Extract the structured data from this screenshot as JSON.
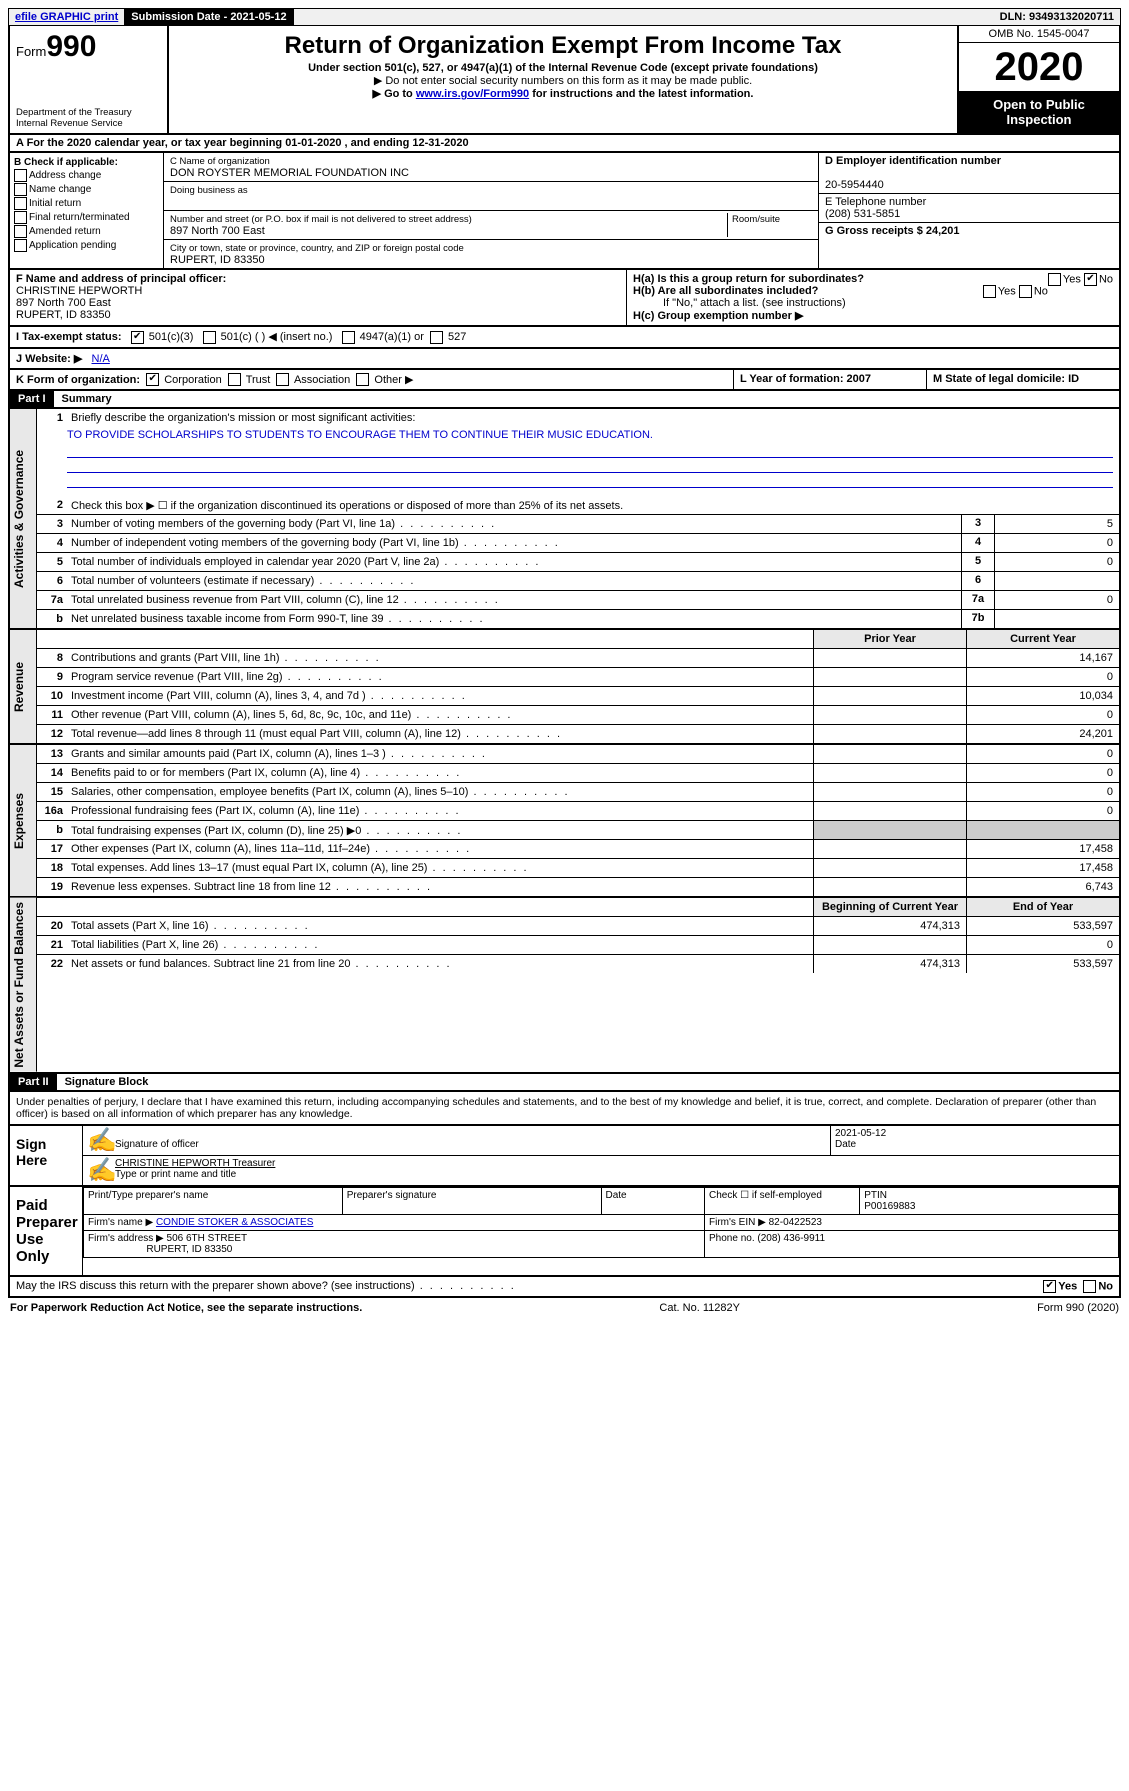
{
  "topbar": {
    "efile": "efile GRAPHIC print",
    "submission_label": "Submission Date - 2021-05-12",
    "dln": "DLN: 93493132020711"
  },
  "header": {
    "form_prefix": "Form",
    "form_number": "990",
    "dept1": "Department of the Treasury",
    "dept2": "Internal Revenue Service",
    "title": "Return of Organization Exempt From Income Tax",
    "subtitle": "Under section 501(c), 527, or 4947(a)(1) of the Internal Revenue Code (except private foundations)",
    "note1": "▶ Do not enter social security numbers on this form as it may be made public.",
    "note2_pre": "▶ Go to ",
    "note2_link": "www.irs.gov/Form990",
    "note2_post": " for instructions and the latest information.",
    "omb": "OMB No. 1545-0047",
    "year": "2020",
    "open": "Open to Public Inspection"
  },
  "line_a": "A For the 2020 calendar year, or tax year beginning 01-01-2020   , and ending 12-31-2020",
  "section_b": {
    "title": "B Check if applicable:",
    "opts": [
      "Address change",
      "Name change",
      "Initial return",
      "Final return/terminated",
      "Amended return",
      "Application pending"
    ]
  },
  "section_c": {
    "name_label": "C Name of organization",
    "org_name": "DON ROYSTER MEMORIAL FOUNDATION INC",
    "dba_label": "Doing business as",
    "addr_label": "Number and street (or P.O. box if mail is not delivered to street address)",
    "room_label": "Room/suite",
    "street": "897 North 700 East",
    "city_label": "City or town, state or province, country, and ZIP or foreign postal code",
    "city": "RUPERT, ID  83350"
  },
  "section_d": {
    "ein_label": "D Employer identification number",
    "ein": "20-5954440",
    "phone_label": "E Telephone number",
    "phone": "(208) 531-5851",
    "gross_label": "G Gross receipts $ 24,201"
  },
  "section_f": {
    "label": "F  Name and address of principal officer:",
    "name": "CHRISTINE HEPWORTH",
    "line2": "897 North 700 East",
    "line3": "RUPERT, ID  83350"
  },
  "section_h": {
    "ha": "H(a)  Is this a group return for subordinates?",
    "hb": "H(b)  Are all subordinates included?",
    "hb_note": "If \"No,\" attach a list. (see instructions)",
    "hc": "H(c)  Group exemption number ▶",
    "yes": "Yes",
    "no": "No"
  },
  "section_i": {
    "label": "I    Tax-exempt status:",
    "c3": "501(c)(3)",
    "c": "501(c) (  ) ◀ (insert no.)",
    "a1": "4947(a)(1) or",
    "s527": "527"
  },
  "section_j": {
    "label": "J    Website: ▶",
    "val": "N/A"
  },
  "section_k": {
    "label": "K Form of organization:",
    "corp": "Corporation",
    "trust": "Trust",
    "assoc": "Association",
    "other": "Other ▶"
  },
  "section_l": {
    "label": "L Year of formation: 2007"
  },
  "section_m": {
    "label": "M State of legal domicile: ID"
  },
  "part1": {
    "header": "Part I",
    "title": "Summary",
    "tab_gov": "Activities & Governance",
    "tab_rev": "Revenue",
    "tab_exp": "Expenses",
    "tab_net": "Net Assets or Fund Balances",
    "line1_label": "Briefly describe the organization's mission or most significant activities:",
    "line1_val": "TO PROVIDE SCHOLARSHIPS TO STUDENTS TO ENCOURAGE THEM TO CONTINUE THEIR MUSIC EDUCATION.",
    "line2": "Check this box ▶ ☐  if the organization discontinued its operations or disposed of more than 25% of its net assets.",
    "lines_gov": [
      {
        "n": "3",
        "d": "Number of voting members of the governing body (Part VI, line 1a)",
        "c": "3",
        "v": "5"
      },
      {
        "n": "4",
        "d": "Number of independent voting members of the governing body (Part VI, line 1b)",
        "c": "4",
        "v": "0"
      },
      {
        "n": "5",
        "d": "Total number of individuals employed in calendar year 2020 (Part V, line 2a)",
        "c": "5",
        "v": "0"
      },
      {
        "n": "6",
        "d": "Total number of volunteers (estimate if necessary)",
        "c": "6",
        "v": ""
      },
      {
        "n": "7a",
        "d": "Total unrelated business revenue from Part VIII, column (C), line 12",
        "c": "7a",
        "v": "0"
      },
      {
        "n": "b",
        "d": "Net unrelated business taxable income from Form 990-T, line 39",
        "c": "7b",
        "v": ""
      }
    ],
    "col_prior": "Prior Year",
    "col_current": "Current Year",
    "lines_rev": [
      {
        "n": "8",
        "d": "Contributions and grants (Part VIII, line 1h)",
        "p": "",
        "c": "14,167"
      },
      {
        "n": "9",
        "d": "Program service revenue (Part VIII, line 2g)",
        "p": "",
        "c": "0"
      },
      {
        "n": "10",
        "d": "Investment income (Part VIII, column (A), lines 3, 4, and 7d )",
        "p": "",
        "c": "10,034"
      },
      {
        "n": "11",
        "d": "Other revenue (Part VIII, column (A), lines 5, 6d, 8c, 9c, 10c, and 11e)",
        "p": "",
        "c": "0"
      },
      {
        "n": "12",
        "d": "Total revenue—add lines 8 through 11 (must equal Part VIII, column (A), line 12)",
        "p": "",
        "c": "24,201"
      }
    ],
    "lines_exp": [
      {
        "n": "13",
        "d": "Grants and similar amounts paid (Part IX, column (A), lines 1–3 )",
        "p": "",
        "c": "0"
      },
      {
        "n": "14",
        "d": "Benefits paid to or for members (Part IX, column (A), line 4)",
        "p": "",
        "c": "0"
      },
      {
        "n": "15",
        "d": "Salaries, other compensation, employee benefits (Part IX, column (A), lines 5–10)",
        "p": "",
        "c": "0"
      },
      {
        "n": "16a",
        "d": "Professional fundraising fees (Part IX, column (A), line 11e)",
        "p": "",
        "c": "0"
      },
      {
        "n": "b",
        "d": "Total fundraising expenses (Part IX, column (D), line 25) ▶0",
        "p": "gray",
        "c": "gray"
      },
      {
        "n": "17",
        "d": "Other expenses (Part IX, column (A), lines 11a–11d, 11f–24e)",
        "p": "",
        "c": "17,458"
      },
      {
        "n": "18",
        "d": "Total expenses. Add lines 13–17 (must equal Part IX, column (A), line 25)",
        "p": "",
        "c": "17,458"
      },
      {
        "n": "19",
        "d": "Revenue less expenses. Subtract line 18 from line 12",
        "p": "",
        "c": "6,743"
      }
    ],
    "col_begin": "Beginning of Current Year",
    "col_end": "End of Year",
    "lines_net": [
      {
        "n": "20",
        "d": "Total assets (Part X, line 16)",
        "p": "474,313",
        "c": "533,597"
      },
      {
        "n": "21",
        "d": "Total liabilities (Part X, line 26)",
        "p": "",
        "c": "0"
      },
      {
        "n": "22",
        "d": "Net assets or fund balances. Subtract line 21 from line 20",
        "p": "474,313",
        "c": "533,597"
      }
    ]
  },
  "part2": {
    "header": "Part II",
    "title": "Signature Block",
    "perjury": "Under penalties of perjury, I declare that I have examined this return, including accompanying schedules and statements, and to the best of my knowledge and belief, it is true, correct, and complete. Declaration of preparer (other than officer) is based on all information of which preparer has any knowledge.",
    "sign_here": "Sign Here",
    "sig_officer": "Signature of officer",
    "sig_date_val": "2021-05-12",
    "sig_date": "Date",
    "sig_name_val": "CHRISTINE HEPWORTH  Treasurer",
    "sig_name": "Type or print name and title",
    "paid": "Paid Preparer Use Only",
    "p_name_h": "Print/Type preparer's name",
    "p_sig_h": "Preparer's signature",
    "p_date_h": "Date",
    "p_check": "Check ☐ if self-employed",
    "p_ptin_h": "PTIN",
    "p_ptin": "P00169883",
    "firm_name_l": "Firm's name    ▶",
    "firm_name": "CONDIE STOKER & ASSOCIATES",
    "firm_ein_l": "Firm's EIN ▶",
    "firm_ein": "82-0422523",
    "firm_addr_l": "Firm's address ▶",
    "firm_addr1": "506 6TH STREET",
    "firm_addr2": "RUPERT, ID  83350",
    "firm_phone_l": "Phone no.",
    "firm_phone": "(208) 436-9911",
    "discuss": "May the IRS discuss this return with the preparer shown above? (see instructions)"
  },
  "footer": {
    "left": "For Paperwork Reduction Act Notice, see the separate instructions.",
    "mid": "Cat. No. 11282Y",
    "right": "Form 990 (2020)"
  }
}
